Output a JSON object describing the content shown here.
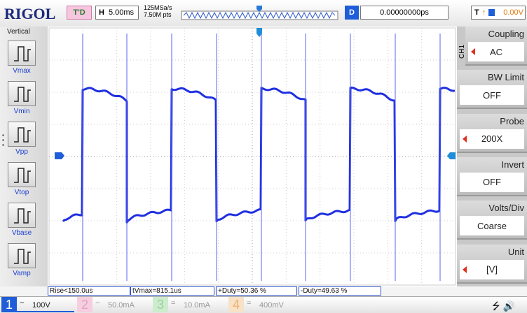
{
  "header": {
    "brand": "RIGOL",
    "trigger_status": "T'D",
    "horizontal_label": "H",
    "timebase": "5.00ms",
    "sample_rate": "125MSa/s",
    "memory_depth": "7.50M pts",
    "delay_label": "D",
    "delay": "0.00000000ps",
    "trigger_label": "T",
    "trigger_level": "0.00V"
  },
  "left_panel": {
    "title": "Vertical",
    "measurements": [
      "Vmax",
      "Vmin",
      "Vpp",
      "Vtop",
      "Vbase",
      "Vamp"
    ]
  },
  "right_menu": {
    "channel": "CH1",
    "items": [
      {
        "label": "Coupling",
        "value": "AC"
      },
      {
        "label": "BW Limit",
        "value": "OFF"
      },
      {
        "label": "Probe",
        "value": "200X"
      },
      {
        "label": "Invert",
        "value": "OFF"
      },
      {
        "label": "Volts/Div",
        "value": "Coarse"
      },
      {
        "label": "Unit",
        "value": "[V]"
      }
    ]
  },
  "measurement_bar": [
    "Rise<150.0us",
    "tVmax=815.1us",
    "+Duty=50.36 %",
    "-Duty=49.63 %"
  ],
  "channels": [
    {
      "number": "1",
      "coupling": "~",
      "scale": "100V"
    },
    {
      "number": "2",
      "coupling": "~",
      "scale": "50.0mA"
    },
    {
      "number": "3",
      "coupling": "=",
      "scale": "10.0mA"
    },
    {
      "number": "4",
      "coupling": "=",
      "scale": "400mV"
    }
  ]
}
